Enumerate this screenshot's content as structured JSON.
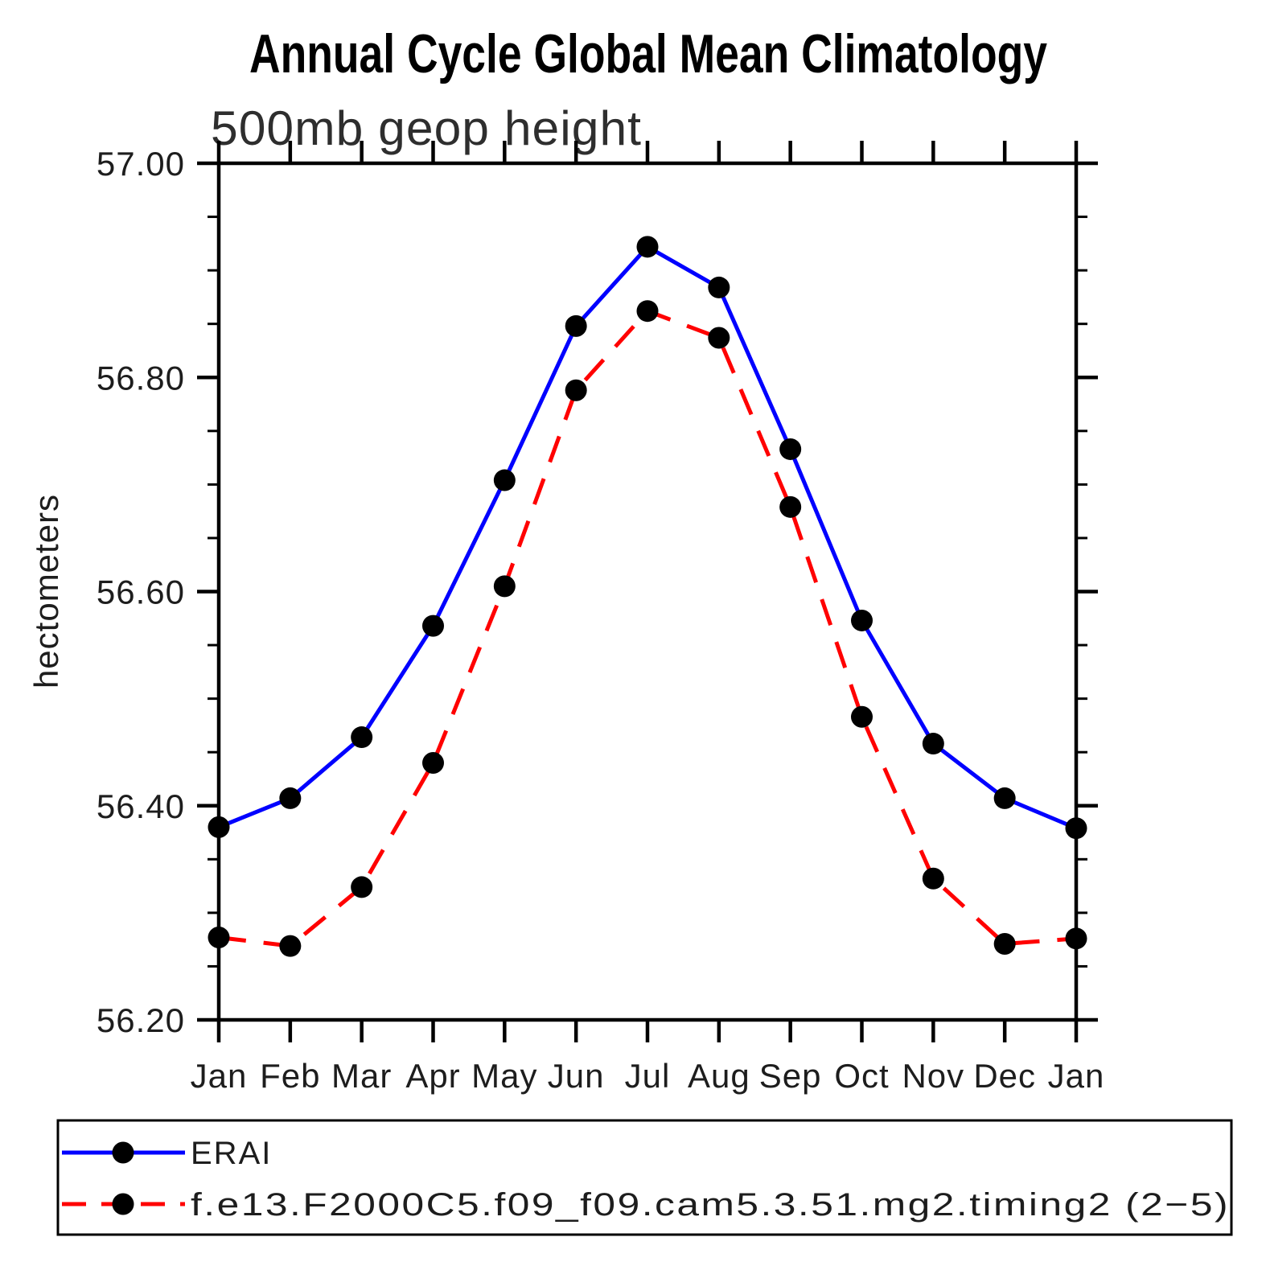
{
  "chart_data": {
    "type": "line",
    "title": "Annual Cycle Global Mean Climatology",
    "subtitle": "500mb geop height",
    "ylabel": "hectometers",
    "grid": false,
    "legend_position": "bottom",
    "x_categories": [
      "Jan",
      "Feb",
      "Mar",
      "Apr",
      "May",
      "Jun",
      "Jul",
      "Aug",
      "Sep",
      "Oct",
      "Nov",
      "Dec",
      "Jan"
    ],
    "y_axis": {
      "min": 56.2,
      "max": 57.0,
      "major_step": 0.2,
      "minor_step": 0.05,
      "tick_labels": [
        "57.00",
        "56.80",
        "56.60",
        "56.40",
        "56.20"
      ]
    },
    "marker": {
      "shape": "circle",
      "color": "#000000"
    },
    "series": [
      {
        "name": "ERAI",
        "color": "#0000ff",
        "style": "solid",
        "values": [
          56.38,
          56.407,
          56.464,
          56.568,
          56.704,
          56.848,
          56.922,
          56.884,
          56.733,
          56.573,
          56.458,
          56.407,
          56.379
        ]
      },
      {
        "name": "f.e13.F2000C5.f09_f09.cam5.3.51.mg2.timing2 (2−5)",
        "color": "#ff0000",
        "style": "dashed",
        "values": [
          56.277,
          56.269,
          56.324,
          56.44,
          56.605,
          56.788,
          56.862,
          56.837,
          56.679,
          56.483,
          56.332,
          56.271,
          56.276
        ]
      }
    ]
  }
}
